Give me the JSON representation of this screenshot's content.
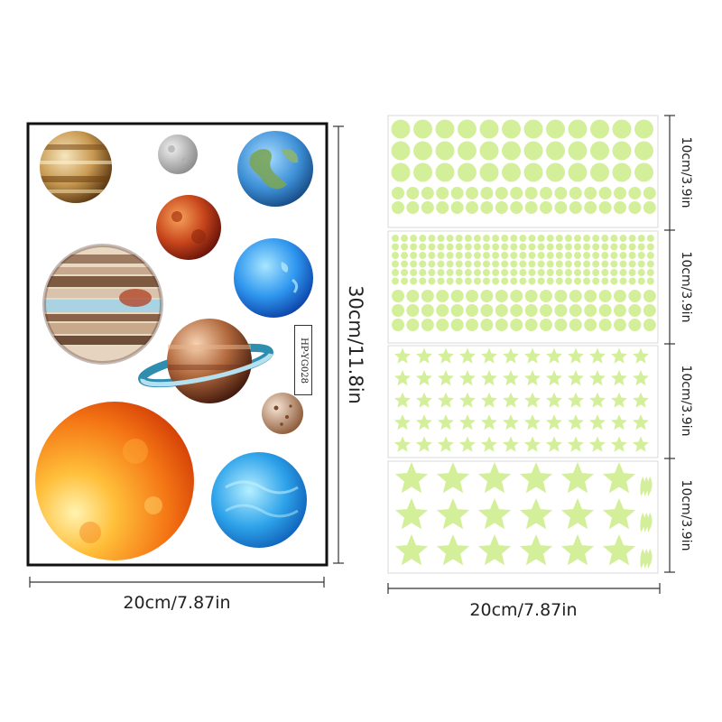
{
  "product_code": "HP-YG028",
  "left_sheet": {
    "width_label": "20cm/7.87in",
    "height_label": "30cm/11.8in"
  },
  "right_sheet": {
    "width_label": "20cm/7.87in",
    "panel_labels": [
      "10cm/3.9in",
      "10cm/3.9in",
      "10cm/3.9in",
      "10cm/3.9in"
    ],
    "glow_color": "#d4ef9a"
  },
  "planets": [
    {
      "name": "jupiter-small",
      "colors": [
        "#f3e2b8",
        "#8a5a24"
      ]
    },
    {
      "name": "moon",
      "colors": [
        "#e2e2e2",
        "#9a9a9a"
      ]
    },
    {
      "name": "earth",
      "colors": [
        "#64b4ec",
        "#1b5fa6"
      ]
    },
    {
      "name": "mars",
      "colors": [
        "#f09048",
        "#8e1e10"
      ]
    },
    {
      "name": "jupiter",
      "colors": [
        "#f1e2d0",
        "#7b5a42"
      ]
    },
    {
      "name": "neptune",
      "colors": [
        "#7fd3ff",
        "#0b58c9"
      ]
    },
    {
      "name": "saturn",
      "colors": [
        "#f0c2a0",
        "#5a2c1a"
      ]
    },
    {
      "name": "mercury",
      "colors": [
        "#f3dcc8",
        "#8a5a3c"
      ]
    },
    {
      "name": "sun",
      "colors": [
        "#ffe58a",
        "#e24a0a"
      ]
    },
    {
      "name": "uranus",
      "colors": [
        "#9de6ff",
        "#0a6fc2"
      ]
    }
  ]
}
